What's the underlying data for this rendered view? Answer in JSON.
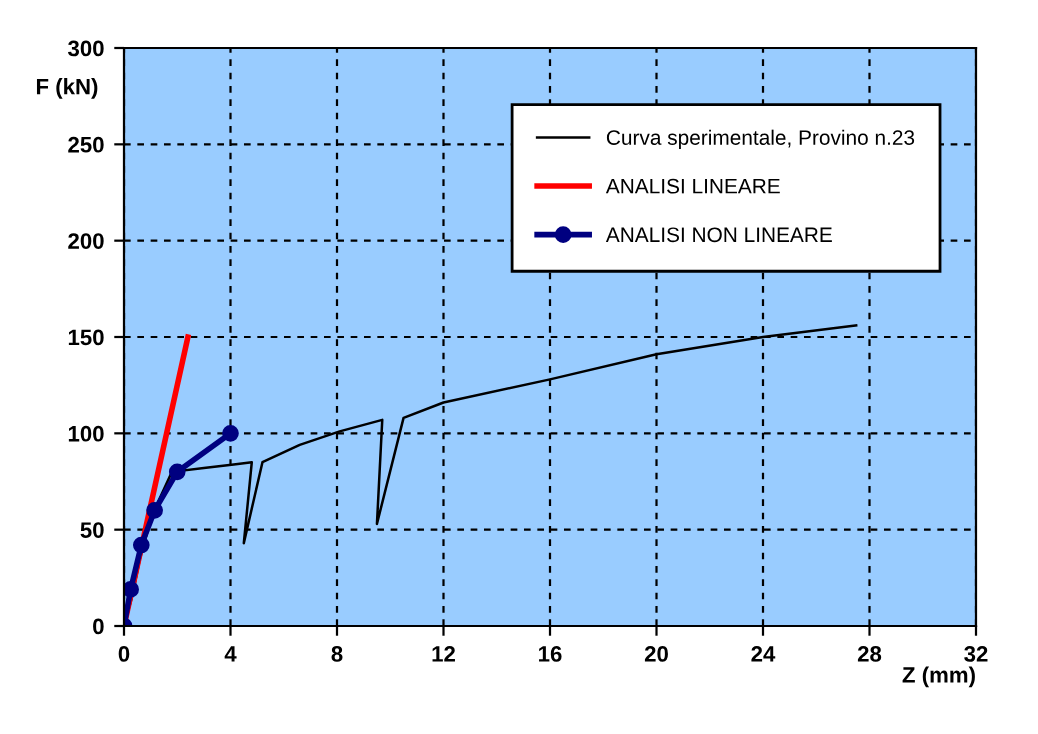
{
  "chart_data": {
    "type": "line",
    "xlabel": "Z (mm)",
    "ylabel": "F (kN)",
    "xlim": [
      0,
      32
    ],
    "xticks": [
      0,
      4,
      8,
      12,
      16,
      20,
      24,
      28,
      32
    ],
    "ylim": [
      0,
      300
    ],
    "yticks": [
      0,
      50,
      100,
      150,
      200,
      250,
      300
    ],
    "grid": true,
    "legend": "top right",
    "series": [
      {
        "name": "Curva sperimentale, Provino n.23",
        "color": "#000000",
        "marker": "none",
        "x": [
          0,
          0.3,
          0.6,
          0.9,
          1.3,
          1.8,
          3,
          4.2,
          4.8,
          4.5,
          5.2,
          6.6,
          8.1,
          9.7,
          9.5,
          10.5,
          12,
          16,
          20,
          24,
          27.5
        ],
        "values": [
          0,
          15,
          35,
          50,
          65,
          80,
          82,
          84,
          85,
          43,
          85,
          94,
          101,
          107,
          53,
          108,
          116,
          128,
          141,
          150,
          156
        ]
      },
      {
        "name": "ANALISI LINEARE",
        "color": "#ff0000",
        "marker": "none",
        "x": [
          0,
          2.4
        ],
        "values": [
          0,
          150
        ]
      },
      {
        "name": "ANALISI NON LINEARE",
        "color": "#000080",
        "marker": "circle",
        "x": [
          0,
          0.25,
          0.65,
          1.15,
          2,
          4
        ],
        "values": [
          0,
          19,
          42,
          60,
          80,
          100
        ]
      }
    ]
  }
}
